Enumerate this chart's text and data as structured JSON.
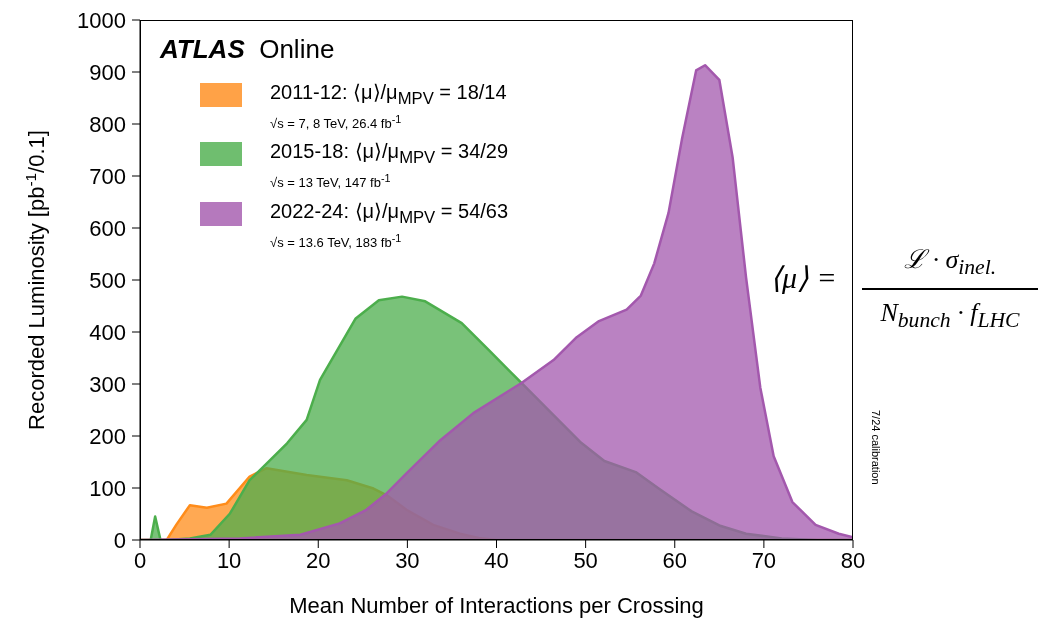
{
  "chart_data": {
    "type": "area",
    "title": "ATLAS Online",
    "xlabel": "Mean Number of Interactions per Crossing",
    "ylabel": "Recorded Luminosity [pb$^{-1}$/0.1]",
    "xlim": [
      0,
      80
    ],
    "xticks": [
      0,
      10,
      20,
      30,
      40,
      50,
      60,
      70,
      80
    ],
    "ylim": [
      0,
      1000
    ],
    "yticks": [
      0,
      100,
      200,
      300,
      400,
      500,
      600,
      700,
      800,
      900,
      1000
    ],
    "legend": "top left",
    "series": [
      {
        "name": "2011-12: ⟨μ⟩/μ$_{MPV}$ = 18/14",
        "color": "#ff8c1a",
        "x": [
          0,
          3,
          4.1,
          5.6,
          7.5,
          9.7,
          12.3,
          14.2,
          18.7,
          23.2,
          26.2,
          27.7,
          29.9,
          32.9,
          35.9,
          38,
          40,
          50,
          60,
          70,
          80
        ],
        "values": [
          0,
          0,
          30,
          67,
          62,
          70,
          122,
          138,
          125,
          115,
          99,
          86,
          58,
          29,
          12,
          4,
          0,
          0,
          0,
          0,
          0
        ]
      },
      {
        "name": "2015-18: ⟨μ⟩/μ$_{MPV}$ = 34/29",
        "color": "#4cae4c",
        "x": [
          0,
          1.2,
          1.7,
          2.3,
          3,
          5.6,
          7.9,
          10.1,
          12.3,
          14.2,
          16.5,
          18.7,
          20.2,
          24.2,
          26.8,
          29.4,
          32,
          36.1,
          39.2,
          42.8,
          46.4,
          49.5,
          52.1,
          55.7,
          58.2,
          61.9,
          65,
          68,
          72,
          76,
          80
        ],
        "values": [
          0,
          0,
          45,
          0,
          0,
          3,
          10,
          51,
          115,
          147,
          186,
          231,
          308,
          426,
          461,
          468,
          459,
          417,
          364,
          302,
          240,
          187,
          152,
          130,
          99,
          55,
          28,
          12,
          3,
          0,
          0
        ]
      },
      {
        "name": "2022-24: ⟨μ⟩/μ$_{MPV}$ = 54/63",
        "color": "#a358ad",
        "x": [
          0,
          11.2,
          18,
          22.4,
          25.4,
          27.7,
          29.9,
          33.7,
          37.4,
          42.8,
          46.4,
          49,
          51.5,
          54.6,
          56.2,
          57.7,
          59.3,
          60.8,
          62.4,
          63.4,
          65,
          66.5,
          68,
          69.6,
          71.1,
          73.2,
          75.8,
          78.4,
          80
        ],
        "values": [
          0,
          3,
          10,
          32,
          58,
          90,
          128,
          192,
          244,
          302,
          346,
          390,
          421,
          443,
          470,
          532,
          629,
          770,
          903,
          913,
          885,
          735,
          505,
          293,
          161,
          73,
          29,
          12,
          5
        ]
      }
    ],
    "annotations": [
      "√s = 7, 8 TeV, 26.4 fb$^{-1}$",
      "√s = 13 TeV, 147 fb$^{-1}$",
      "√s = 13.6 TeV, 183 fb$^{-1}$",
      "⟨μ⟩ =",
      "ℒ · σ$_{inel.}$",
      "N$_{bunch}$ · f$_{LHC}$",
      "7/24 calibration"
    ]
  }
}
